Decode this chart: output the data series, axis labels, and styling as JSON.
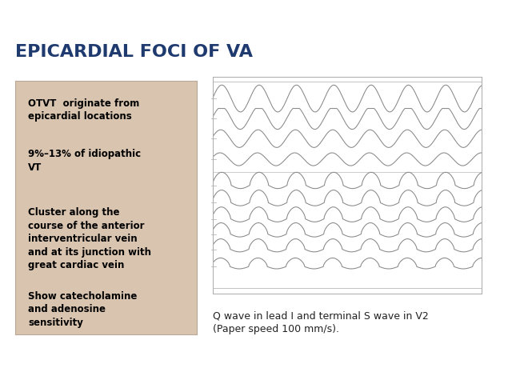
{
  "title": "EPICARDIAL FOCI OF VA",
  "title_color": "#1F3A6E",
  "title_fontsize": 16,
  "title_fontweight": "bold",
  "background_color": "#FFFFFF",
  "right_bar_color": "#3B6CB7",
  "bullet_points": [
    "OTVT  originate from\nepicardial locations",
    "9%–13% of idiopathic\nVT",
    "Cluster along the\ncourse of the anterior\ninterventricular vein\nand at its junction with\ngreat cardiac vein",
    "Show catecholamine\nand adenosine\nsensitivity"
  ],
  "bullet_box_facecolor": "#D9C4B0",
  "bullet_box_edgecolor": "#B8A898",
  "bullet_text_color": "#000000",
  "bullet_fontsize": 8.5,
  "caption_text": "Q wave in lead I and terminal S wave in V2\n(Paper speed 100 mm/s).",
  "caption_fontsize": 9,
  "caption_color": "#222222",
  "ecg_line_color": "#888888",
  "ecg_bg_color": "#FFFFFF",
  "ecg_border_color": "#AAAAAA"
}
